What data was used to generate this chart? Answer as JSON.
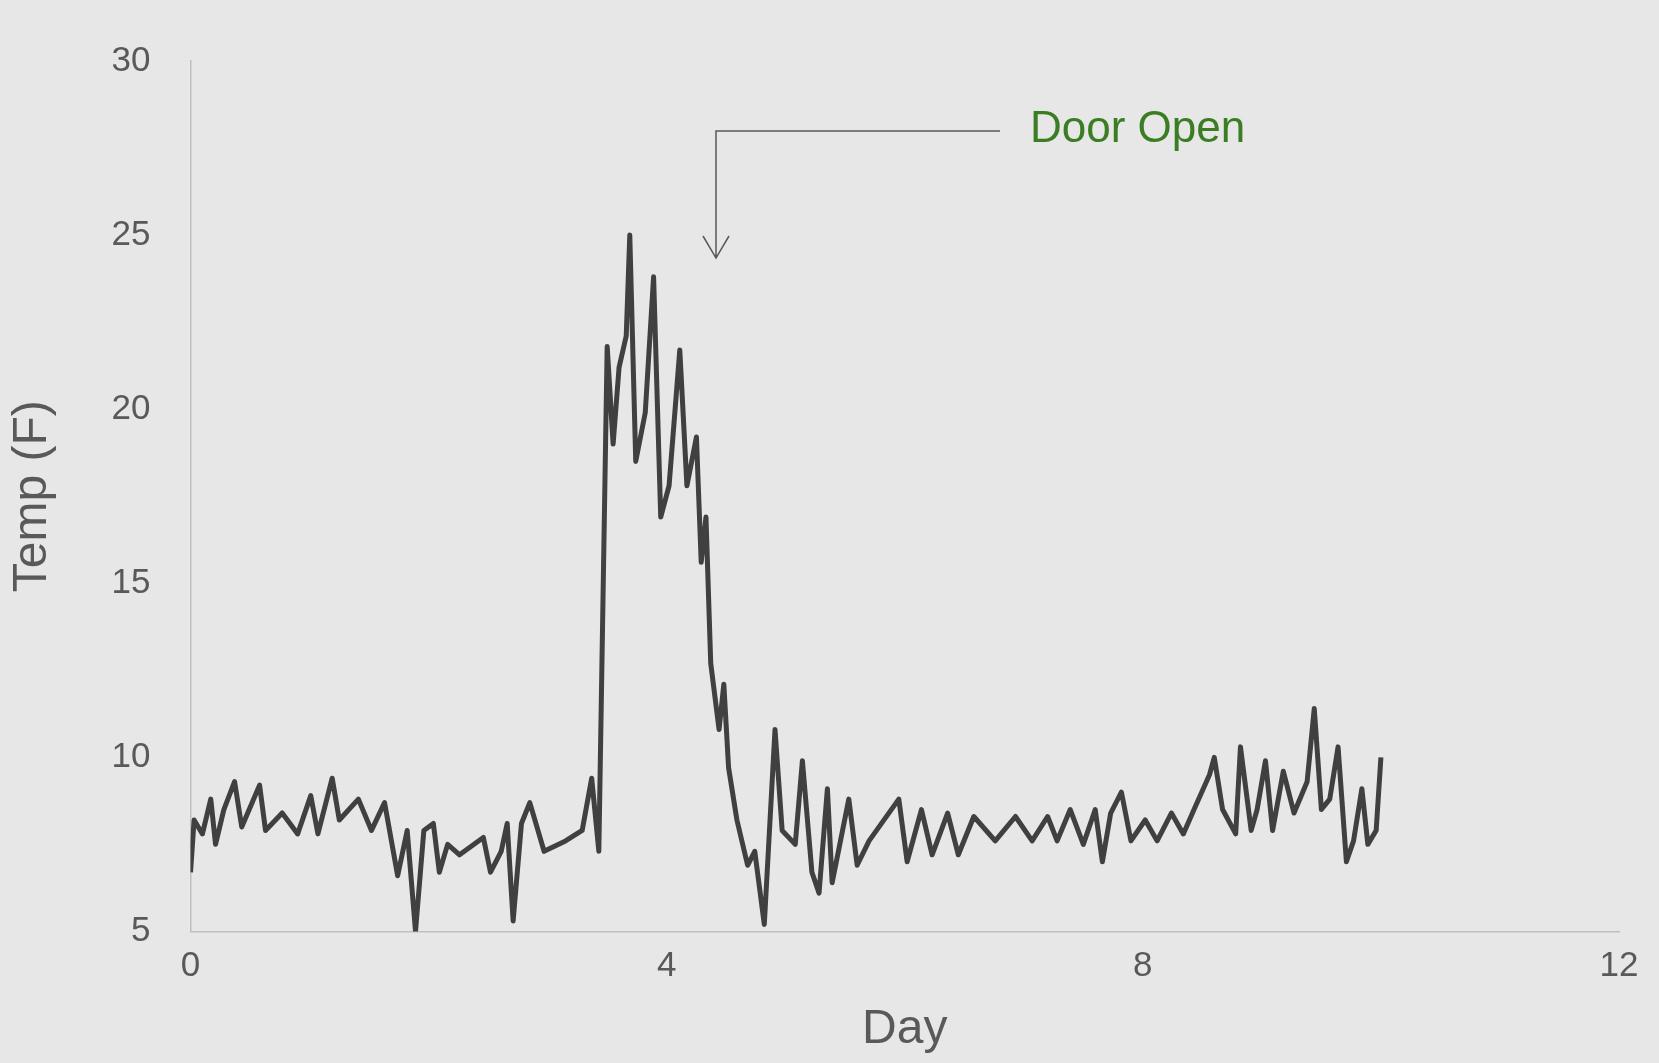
{
  "chart_data": {
    "type": "line",
    "xlabel": "Day",
    "ylabel": "Temp (F)",
    "x": [
      0,
      0.03,
      0.1,
      0.17,
      0.21,
      0.28,
      0.37,
      0.43,
      0.58,
      0.63,
      0.77,
      0.9,
      1.01,
      1.07,
      1.19,
      1.25,
      1.41,
      1.52,
      1.63,
      1.74,
      1.82,
      1.89,
      1.96,
      2.04,
      2.09,
      2.16,
      2.26,
      2.46,
      2.52,
      2.61,
      2.66,
      2.71,
      2.78,
      2.85,
      2.97,
      3.15,
      3.29,
      3.37,
      3.43,
      3.5,
      3.55,
      3.6,
      3.66,
      3.69,
      3.74,
      3.82,
      3.89,
      3.95,
      4.02,
      4.11,
      4.17,
      4.25,
      4.29,
      4.33,
      4.37,
      4.44,
      4.48,
      4.52,
      4.59,
      4.68,
      4.74,
      4.82,
      4.91,
      4.97,
      5.08,
      5.14,
      5.22,
      5.28,
      5.35,
      5.39,
      5.53,
      5.6,
      5.7,
      5.95,
      6.02,
      6.14,
      6.23,
      6.36,
      6.45,
      6.58,
      6.76,
      6.93,
      7.07,
      7.2,
      7.28,
      7.39,
      7.5,
      7.6,
      7.66,
      7.73,
      7.82,
      7.9,
      8.02,
      8.12,
      8.24,
      8.34,
      8.43,
      8.56,
      8.6,
      8.67,
      8.78,
      8.82,
      8.91,
      8.96,
      9.03,
      9.09,
      9.18,
      9.27,
      9.38,
      9.44,
      9.5,
      9.57,
      9.64,
      9.71,
      9.77,
      9.84,
      9.89,
      9.96,
      10.0
    ],
    "series": [
      {
        "color": "#404040",
        "values": [
          6.7,
          8.2,
          7.8,
          8.8,
          7.5,
          8.5,
          9.3,
          8.0,
          9.2,
          7.9,
          8.4,
          7.8,
          8.9,
          7.8,
          9.4,
          8.2,
          8.8,
          7.9,
          8.7,
          6.6,
          7.9,
          5.0,
          7.9,
          8.1,
          6.7,
          7.5,
          7.2,
          7.7,
          6.7,
          7.3,
          8.1,
          5.3,
          8.1,
          8.7,
          7.3,
          7.6,
          7.9,
          9.4,
          7.3,
          21.8,
          19.0,
          21.2,
          22.1,
          25.0,
          18.5,
          19.9,
          23.8,
          16.9,
          17.8,
          21.7,
          17.8,
          19.2,
          15.6,
          16.9,
          12.7,
          10.8,
          12.1,
          9.7,
          8.2,
          6.9,
          7.3,
          5.2,
          10.8,
          7.9,
          7.5,
          9.9,
          6.7,
          6.1,
          9.1,
          6.4,
          8.8,
          6.9,
          7.6,
          8.8,
          7.0,
          8.5,
          7.2,
          8.4,
          7.2,
          8.3,
          7.6,
          8.3,
          7.6,
          8.3,
          7.6,
          8.5,
          7.5,
          8.5,
          7.0,
          8.4,
          9.0,
          7.6,
          8.2,
          7.6,
          8.4,
          7.8,
          8.5,
          9.5,
          10.0,
          8.5,
          7.8,
          10.3,
          7.9,
          8.5,
          9.9,
          7.9,
          9.6,
          8.4,
          9.3,
          11.4,
          8.5,
          8.8,
          10.3,
          7.0,
          7.6,
          9.1,
          7.5,
          7.9,
          10.0
        ]
      }
    ],
    "xlim": [
      0,
      12
    ],
    "xticks": [
      0,
      4,
      8,
      12
    ],
    "ylim": [
      5,
      30
    ],
    "yticks": [
      5,
      10,
      15,
      20,
      25,
      30
    ],
    "grid": false,
    "legend": false,
    "marker": "none",
    "line_style": "solid",
    "annotations": [
      "Door Open"
    ]
  }
}
